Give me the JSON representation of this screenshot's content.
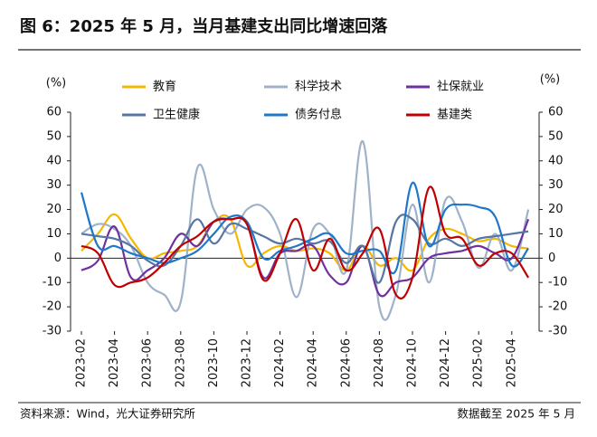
{
  "chart_data": {
    "type": "line",
    "title": "图 6：2025 年 5 月，当月基建支出同比增速回落",
    "ylabel": "(%)",
    "y2label": "(%)",
    "source": "资料来源：Wind，光大证券研究所",
    "note": "数据截至 2025 年 5 月",
    "categories": [
      "2023-02",
      null,
      "2023-04",
      null,
      "2023-06",
      null,
      "2023-08",
      null,
      "2023-10",
      null,
      "2023-12",
      null,
      "2024-02",
      null,
      "2024-04",
      null,
      "2024-06",
      null,
      "2024-08",
      null,
      "2024-10",
      null,
      "2024-12",
      null,
      "2025-02",
      null,
      "2025-04",
      null
    ],
    "ylim": [
      -30,
      60
    ],
    "yticks": [
      -30,
      -20,
      -10,
      0,
      10,
      20,
      30,
      40,
      50,
      60
    ],
    "y2lim": [
      -30,
      60
    ],
    "y2ticks": [
      -30,
      -20,
      -10,
      0,
      10,
      20,
      30,
      40,
      50,
      60
    ],
    "grid": false,
    "series": [
      {
        "name": "教育",
        "color": "#f5b800",
        "values": [
          3,
          10,
          18,
          8,
          0,
          2,
          3,
          5,
          15,
          16,
          -3,
          2,
          5,
          3,
          4,
          2,
          -5,
          5,
          -3,
          0,
          -5,
          8,
          12,
          10,
          7,
          8,
          5,
          4
        ]
      },
      {
        "name": "科学技术",
        "color": "#9fb2c9",
        "values": [
          10,
          14,
          12,
          5,
          -10,
          -15,
          -18,
          37,
          20,
          10,
          20,
          21,
          10,
          -16,
          12,
          10,
          -5,
          48,
          -20,
          -15,
          22,
          -10,
          24,
          15,
          -4,
          10,
          -5,
          20
        ]
      },
      {
        "name": "社保就业",
        "color": "#7030a0",
        "values": [
          -5,
          -1,
          13,
          -8,
          -5,
          0,
          10,
          5,
          15,
          16,
          14,
          -8,
          2,
          3,
          5,
          -7,
          -10,
          5,
          -15,
          -10,
          -8,
          0,
          2,
          3,
          5,
          2,
          0,
          16
        ]
      },
      {
        "name": "卫生健康",
        "color": "#5677a3",
        "values": [
          10,
          9,
          8,
          5,
          -1,
          -3,
          5,
          16,
          6,
          14,
          12,
          9,
          6,
          8,
          6,
          7,
          -2,
          5,
          -10,
          15,
          16,
          6,
          8,
          5,
          8,
          9,
          10,
          11
        ]
      },
      {
        "name": "债务付息",
        "color": "#1f77c8",
        "values": [
          27,
          5,
          5,
          2,
          0,
          -2,
          0,
          3,
          10,
          17,
          15,
          0,
          3,
          5,
          8,
          10,
          2,
          3,
          3,
          -5,
          31,
          5,
          20,
          22,
          21,
          17,
          -3,
          4
        ]
      },
      {
        "name": "基建类",
        "color": "#c00000",
        "values": [
          5,
          2,
          -11,
          -10,
          -8,
          -2,
          5,
          9,
          15,
          16,
          14,
          -9,
          2,
          16,
          -5,
          8,
          -5,
          2,
          12,
          -15,
          -8,
          29,
          10,
          8,
          -3,
          2,
          2,
          -8
        ]
      }
    ]
  }
}
